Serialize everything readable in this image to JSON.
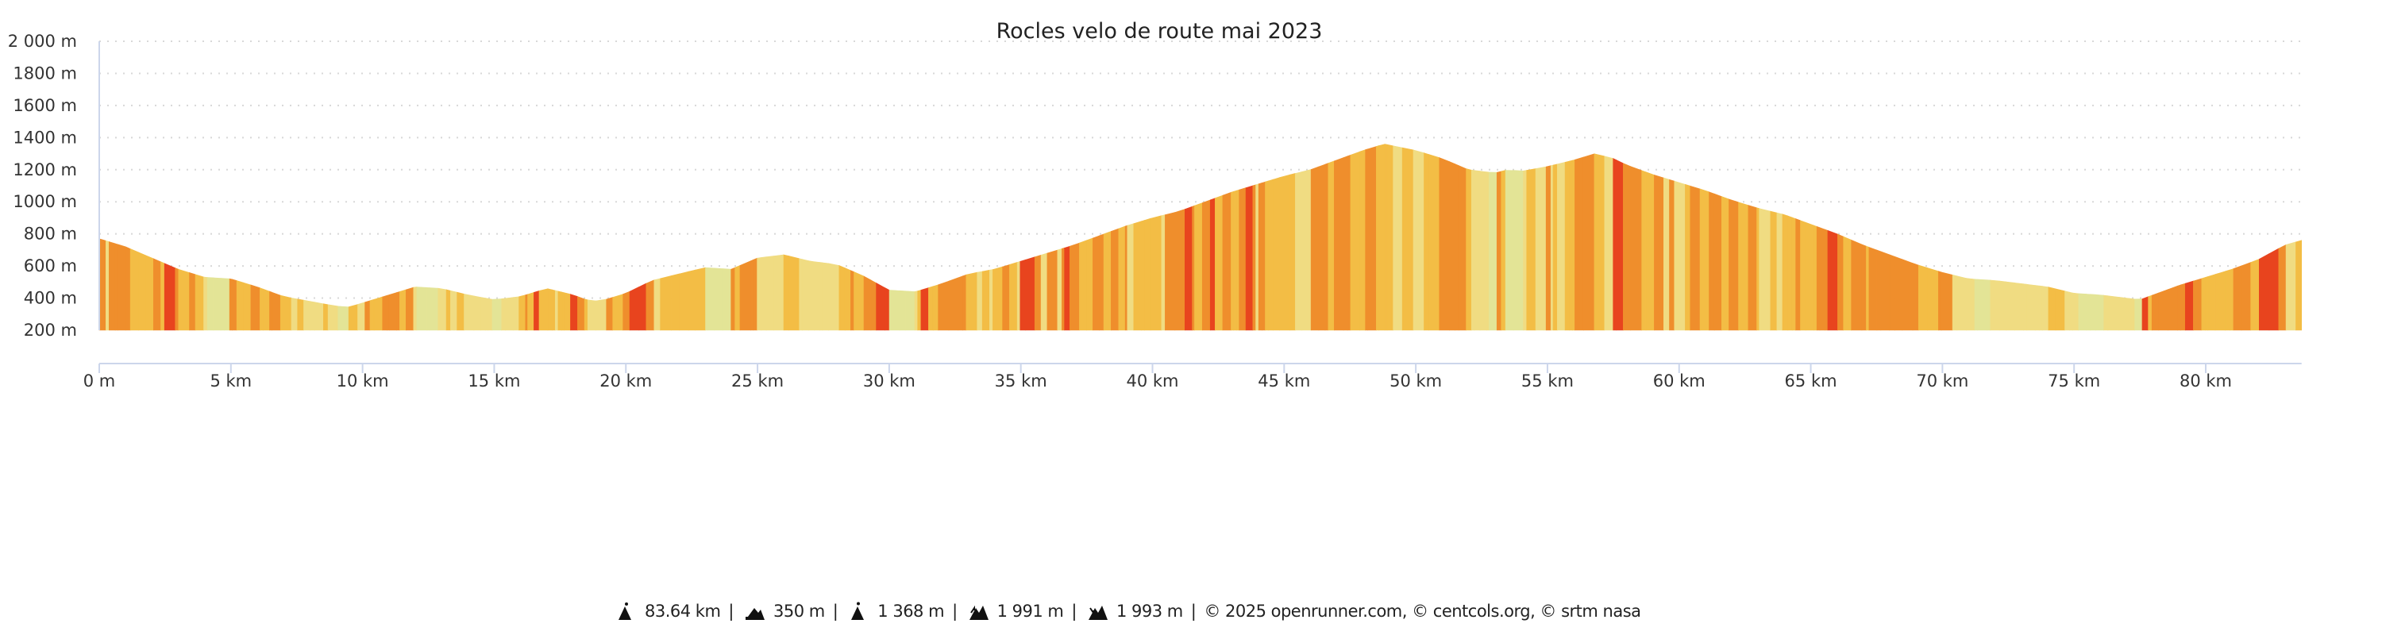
{
  "chart_data": {
    "type": "area",
    "title": "Rocles velo de route mai 2023",
    "xlabel": "",
    "ylabel": "",
    "xlim": [
      0,
      83.64
    ],
    "ylim": [
      200,
      2000
    ],
    "grid": true,
    "y_ticks": [
      "2 000 m",
      "1800 m",
      "1600 m",
      "1400 m",
      "1200 m",
      "1000 m",
      "800 m",
      "600 m",
      "400 m",
      "200 m"
    ],
    "y_tick_values": [
      2000,
      1800,
      1600,
      1400,
      1200,
      1000,
      800,
      600,
      400,
      200
    ],
    "x_ticks": [
      "0 m",
      "5 km",
      "10 km",
      "15 km",
      "20 km",
      "25 km",
      "30 km",
      "35 km",
      "40 km",
      "45 km",
      "50 km",
      "55 km",
      "60 km",
      "65 km",
      "70 km",
      "75 km",
      "80 km"
    ],
    "x_tick_values": [
      0,
      5,
      10,
      15,
      20,
      25,
      30,
      35,
      40,
      45,
      50,
      55,
      60,
      65,
      70,
      75,
      80
    ],
    "gradient_colors": [
      "#e3e496",
      "#f0dc82",
      "#f3bd45",
      "#ef8e2c",
      "#e8441e"
    ],
    "series": [
      {
        "x": [
          0,
          1,
          2,
          3,
          4,
          5,
          6,
          7,
          8,
          9,
          9.5,
          10,
          11,
          12,
          13,
          14,
          15,
          16,
          17,
          18,
          18.5,
          19,
          20,
          21,
          22,
          23,
          24,
          25,
          26,
          27,
          28,
          29,
          30,
          31,
          32,
          33,
          34,
          35,
          36,
          37,
          38,
          39,
          40,
          41,
          42,
          43,
          44,
          45,
          46,
          47,
          48,
          48.8,
          50,
          51,
          52,
          53,
          53.5,
          54,
          55,
          56,
          56.8,
          57.5,
          58,
          59,
          60,
          61,
          62,
          63,
          64,
          65,
          66,
          67,
          68,
          69,
          70,
          71,
          72,
          73,
          74,
          75,
          76,
          77,
          77.5,
          78,
          79,
          80,
          81,
          82,
          83,
          83.64
        ],
        "y": [
          770,
          720,
          650,
          580,
          530,
          520,
          470,
          410,
          380,
          350,
          345,
          370,
          420,
          470,
          460,
          420,
          390,
          410,
          460,
          420,
          390,
          380,
          430,
          510,
          550,
          590,
          580,
          650,
          670,
          630,
          610,
          540,
          450,
          440,
          490,
          550,
          580,
          630,
          680,
          730,
          790,
          850,
          900,
          940,
          1000,
          1060,
          1110,
          1160,
          1200,
          1260,
          1320,
          1360,
          1320,
          1270,
          1200,
          1180,
          1200,
          1190,
          1220,
          1260,
          1300,
          1270,
          1230,
          1170,
          1120,
          1070,
          1010,
          960,
          920,
          860,
          800,
          730,
          670,
          610,
          560,
          520,
          510,
          490,
          470,
          430,
          420,
          400,
          390,
          420,
          480,
          530,
          580,
          640,
          730,
          760
        ]
      }
    ]
  },
  "footer": {
    "distance": "83.64 km",
    "min_altitude": "350 m",
    "max_altitude": "1 368 m",
    "elevation_gain": "1 991 m",
    "elevation_loss": "1 993 m",
    "credits": "© 2025 openrunner.com, © centcols.org, © srtm nasa",
    "separator": "|"
  }
}
